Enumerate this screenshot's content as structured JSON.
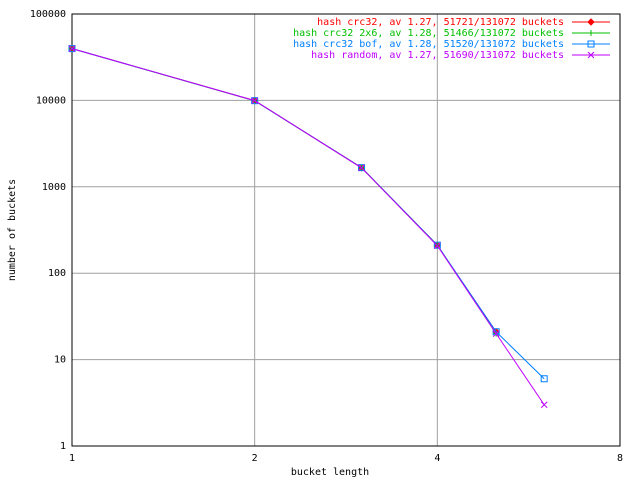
{
  "chart_data": {
    "type": "line",
    "x_label": "bucket length",
    "y_label": "number of buckets",
    "x": [
      1,
      2,
      3,
      4,
      5,
      6
    ],
    "series": [
      {
        "name": "hash crc32, av 1.27, 51721/131072 buckets",
        "color": "#ff0000",
        "marker": "diamond",
        "values": [
          39800,
          9950,
          1660,
          210,
          21,
          null
        ]
      },
      {
        "name": "hash crc32 2x6, av 1.28, 51466/131072 buckets",
        "color": "#00c000",
        "marker": "plus",
        "values": [
          39700,
          9900,
          1670,
          212,
          20,
          null
        ]
      },
      {
        "name": "hash crc32 bof, av 1.28, 51520/131072 buckets",
        "color": "#0080ff",
        "marker": "square",
        "values": [
          39750,
          9930,
          1665,
          211,
          21,
          6
        ]
      },
      {
        "name": "hash random, av 1.27, 51690/131072 buckets",
        "color": "#c000ff",
        "marker": "cross",
        "values": [
          39750,
          9950,
          1660,
          208,
          20,
          3
        ]
      }
    ],
    "xlim": [
      1,
      8
    ],
    "xticks": [
      1,
      2,
      4,
      8
    ],
    "xscale": "log",
    "ylim": [
      1,
      100000
    ],
    "yticks": [
      1,
      10,
      100,
      1000,
      10000,
      100000
    ],
    "yscale": "log",
    "grid": true,
    "legend": "top-right"
  }
}
